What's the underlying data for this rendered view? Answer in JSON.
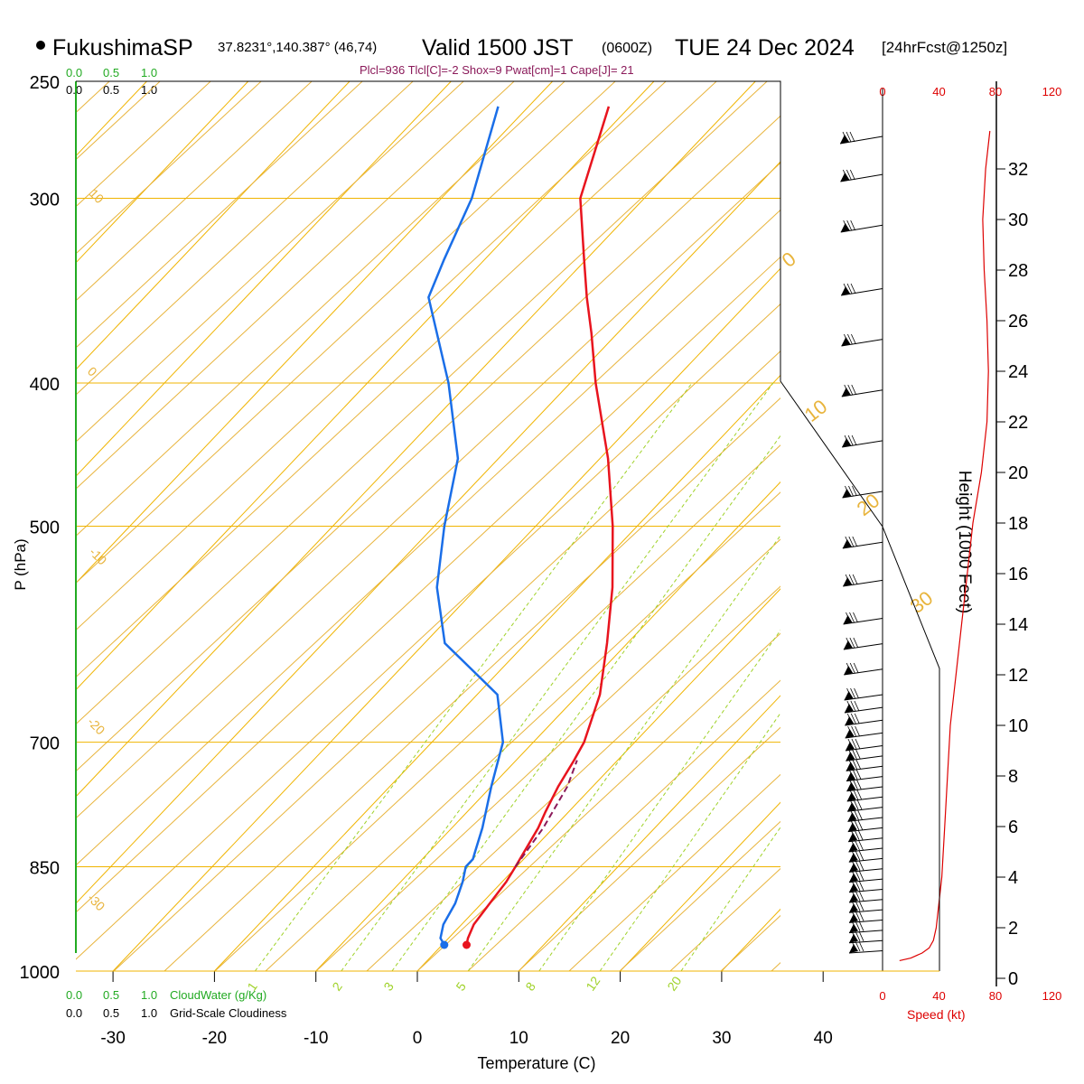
{
  "header": {
    "station": "FukushimaSP",
    "coords": "37.8231°,140.387° (46,74)",
    "valid": "Valid 1500 JST",
    "utc": "(0600Z)",
    "date": "TUE 24 Dec 2024",
    "fcst": "[24hrFcst@1250z]",
    "indices": "Plcl=936 Tlcl[C]=-2 Shox=9 Pwat[cm]=1 Cape[J]= 21"
  },
  "labels": {
    "ylabel": "P (hPa)",
    "xlabel": "Temperature (C)",
    "height_label": "Height (1000 Feet)",
    "speed_label": "Speed (kt)",
    "cloudwater_label": "CloudWater (g/Kg)",
    "cloudiness_label": "Grid-Scale Cloudiness"
  },
  "colors": {
    "temperature": "#e8141e",
    "dewpoint": "#1a6ee8",
    "parcel": "#8b1a5a",
    "isotherm_isobar": "#f0b400",
    "dry_adiabat": "#e8b43c",
    "moist_adiabat": "#9ec81e",
    "mixing_ratio": "#a0d22a",
    "cloud": "#22aa22",
    "speed": "#dd0000"
  },
  "chart_data": {
    "type": "skew-t",
    "pressure_ticks": [
      250,
      300,
      400,
      500,
      700,
      850,
      1000
    ],
    "temperature_ticks": [
      -30,
      -20,
      -10,
      0,
      10,
      20,
      30,
      40
    ],
    "xlim": [
      -35,
      47
    ],
    "ylim_hpa": [
      1000,
      250
    ],
    "temperature": {
      "p": [
        960,
        950,
        930,
        900,
        870,
        850,
        800,
        780,
        750,
        720,
        700,
        650,
        600,
        550,
        500,
        450,
        400,
        370,
        350,
        330,
        300,
        260
      ],
      "t": [
        2.4,
        1.9,
        1.2,
        0.8,
        0.4,
        -0.1,
        -1.5,
        -2.3,
        -3.4,
        -4.3,
        -5,
        -7.9,
        -12,
        -16.7,
        -22.4,
        -29.2,
        -37.5,
        -42.6,
        -46.4,
        -50.2,
        -56.3,
        -62.1
      ]
    },
    "dewpoint": {
      "p": [
        960,
        950,
        930,
        900,
        870,
        850,
        840,
        830,
        800,
        750,
        700,
        650,
        600,
        550,
        500,
        450,
        400,
        350,
        330,
        300,
        260
      ],
      "td": [
        0.2,
        -0.8,
        -1.8,
        -2.6,
        -3.9,
        -5.0,
        -5.0,
        -5.5,
        -7.0,
        -10.0,
        -13.0,
        -18.0,
        -28.0,
        -34.0,
        -39.0,
        -44.0,
        -52.0,
        -62.0,
        -64.0,
        -67.0,
        -73.0
      ]
    },
    "parcel": {
      "p": [
        850,
        800,
        750,
        720
      ],
      "t": [
        -0.1,
        -1.0,
        -2.5,
        -4.0
      ]
    },
    "isotherm_labels": [
      10,
      0,
      -10,
      -20,
      -30
    ],
    "dry_adiabat_labels": [
      0,
      10,
      20,
      30
    ],
    "mixing_ratio_labels": [
      1,
      2,
      3,
      5,
      8,
      12,
      20
    ],
    "height_kft_ticks": [
      0,
      2,
      4,
      6,
      8,
      10,
      12,
      14,
      16,
      18,
      20,
      22,
      24,
      26,
      28,
      30,
      32
    ],
    "speed_ticks_kt": [
      0,
      40,
      80,
      120
    ],
    "cloud_ticks": [
      "0.0",
      "0.5",
      "1.0"
    ],
    "wind_speed_profile_kt": {
      "height_kft": [
        0.7,
        0.8,
        1.0,
        1.2,
        1.5,
        2.0,
        3.0,
        4.0,
        6.0,
        8.0,
        10.0,
        12.0,
        14.0,
        16.0,
        18.0,
        20.0,
        22.0,
        24.0,
        26.0,
        28.0,
        30.0,
        32.0,
        33.5
      ],
      "speed": [
        12,
        20,
        28,
        33,
        36,
        38,
        40,
        42,
        44,
        46,
        48,
        52,
        56,
        60,
        64,
        70,
        74,
        75,
        74,
        72,
        71,
        73,
        76
      ]
    },
    "barb_heights_kft": [
      33.0,
      31.5,
      29.5,
      27.0,
      25.0,
      23.0,
      21.0,
      19.0,
      17.0,
      15.5,
      14.0,
      13.0,
      12.0,
      11.0,
      10.5,
      10.0,
      9.5,
      9.0,
      8.6,
      8.2,
      7.8,
      7.4,
      7.0,
      6.6,
      6.2,
      5.8,
      5.4,
      5.0,
      4.6,
      4.2,
      3.8,
      3.4,
      3.0,
      2.6,
      2.2,
      1.8,
      1.4,
      1.0
    ]
  }
}
